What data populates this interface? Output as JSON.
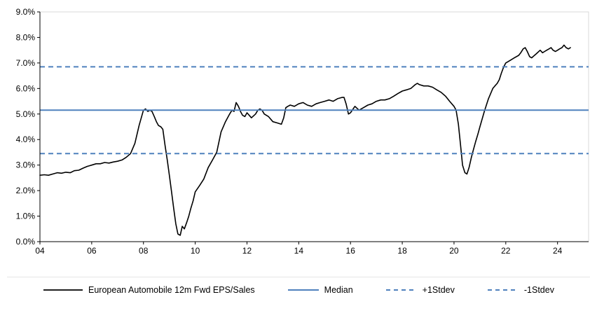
{
  "chart_data": {
    "type": "line",
    "title": "",
    "xlabel": "",
    "ylabel": "",
    "grid": false,
    "legend_position": "bottom",
    "xlim": [
      2004,
      2025.2
    ],
    "ylim": [
      0,
      9
    ],
    "x_tick_values": [
      2004,
      2006,
      2008,
      2010,
      2012,
      2014,
      2016,
      2018,
      2020,
      2022,
      2024
    ],
    "x_tick_labels": [
      "04",
      "06",
      "08",
      "10",
      "12",
      "14",
      "16",
      "18",
      "20",
      "22",
      "24"
    ],
    "y_tick_values": [
      0,
      1,
      2,
      3,
      4,
      5,
      6,
      7,
      8,
      9
    ],
    "y_tick_labels": [
      "0.0%",
      "1.0%",
      "2.0%",
      "3.0%",
      "4.0%",
      "5.0%",
      "6.0%",
      "7.0%",
      "8.0%",
      "9.0%"
    ],
    "colors": {
      "series": "#000000",
      "reference": "#4F81BD",
      "plot_border": "#d9d9d9"
    },
    "series": [
      {
        "name": "European Automobile 12m Fwd EPS/Sales",
        "type": "line",
        "style": "solid",
        "color": "#000000",
        "x": [
          2004.0,
          2004.17,
          2004.33,
          2004.5,
          2004.67,
          2004.83,
          2005.0,
          2005.17,
          2005.33,
          2005.5,
          2005.67,
          2005.83,
          2006.0,
          2006.17,
          2006.33,
          2006.5,
          2006.67,
          2006.83,
          2007.0,
          2007.17,
          2007.33,
          2007.5,
          2007.67,
          2007.83,
          2008.0,
          2008.08,
          2008.17,
          2008.25,
          2008.33,
          2008.42,
          2008.5,
          2008.58,
          2008.67,
          2008.75,
          2008.83,
          2008.92,
          2009.0,
          2009.08,
          2009.17,
          2009.25,
          2009.33,
          2009.42,
          2009.5,
          2009.58,
          2009.67,
          2009.75,
          2009.83,
          2009.92,
          2010.0,
          2010.17,
          2010.33,
          2010.5,
          2010.67,
          2010.83,
          2011.0,
          2011.17,
          2011.33,
          2011.42,
          2011.5,
          2011.58,
          2011.67,
          2011.75,
          2011.83,
          2011.92,
          2012.0,
          2012.17,
          2012.33,
          2012.42,
          2012.5,
          2012.58,
          2012.67,
          2012.83,
          2013.0,
          2013.17,
          2013.33,
          2013.42,
          2013.5,
          2013.58,
          2013.67,
          2013.83,
          2014.0,
          2014.17,
          2014.33,
          2014.5,
          2014.67,
          2014.83,
          2015.0,
          2015.17,
          2015.33,
          2015.5,
          2015.67,
          2015.75,
          2015.83,
          2015.92,
          2016.0,
          2016.17,
          2016.33,
          2016.5,
          2016.67,
          2016.83,
          2017.0,
          2017.17,
          2017.33,
          2017.5,
          2017.67,
          2017.83,
          2018.0,
          2018.17,
          2018.33,
          2018.5,
          2018.58,
          2018.67,
          2018.83,
          2019.0,
          2019.17,
          2019.33,
          2019.5,
          2019.67,
          2019.83,
          2020.0,
          2020.08,
          2020.17,
          2020.25,
          2020.33,
          2020.42,
          2020.5,
          2020.58,
          2020.67,
          2020.75,
          2020.83,
          2020.92,
          2021.0,
          2021.17,
          2021.33,
          2021.5,
          2021.58,
          2021.67,
          2021.75,
          2021.83,
          2021.92,
          2022.0,
          2022.17,
          2022.33,
          2022.5,
          2022.58,
          2022.67,
          2022.75,
          2022.83,
          2022.92,
          2023.0,
          2023.17,
          2023.33,
          2023.42,
          2023.5,
          2023.58,
          2023.67,
          2023.75,
          2023.83,
          2023.92,
          2024.0,
          2024.08,
          2024.17,
          2024.25,
          2024.33,
          2024.42,
          2024.5
        ],
        "y": [
          2.6,
          2.62,
          2.6,
          2.65,
          2.7,
          2.68,
          2.72,
          2.7,
          2.78,
          2.8,
          2.88,
          2.95,
          3.0,
          3.05,
          3.05,
          3.1,
          3.08,
          3.12,
          3.15,
          3.2,
          3.3,
          3.45,
          3.85,
          4.55,
          5.15,
          5.2,
          5.1,
          5.15,
          5.1,
          4.9,
          4.7,
          4.55,
          4.5,
          4.4,
          3.8,
          3.2,
          2.6,
          2.0,
          1.3,
          0.7,
          0.3,
          0.25,
          0.6,
          0.5,
          0.75,
          1.0,
          1.3,
          1.6,
          1.95,
          2.2,
          2.45,
          2.9,
          3.2,
          3.5,
          4.3,
          4.7,
          5.0,
          5.15,
          5.1,
          5.45,
          5.3,
          5.1,
          4.95,
          4.9,
          5.05,
          4.85,
          5.0,
          5.15,
          5.2,
          5.15,
          5.0,
          4.9,
          4.7,
          4.65,
          4.6,
          4.85,
          5.25,
          5.3,
          5.35,
          5.3,
          5.4,
          5.45,
          5.35,
          5.3,
          5.4,
          5.45,
          5.5,
          5.55,
          5.5,
          5.6,
          5.65,
          5.65,
          5.4,
          5.0,
          5.05,
          5.3,
          5.15,
          5.25,
          5.35,
          5.4,
          5.5,
          5.55,
          5.55,
          5.6,
          5.7,
          5.8,
          5.9,
          5.95,
          6.0,
          6.15,
          6.2,
          6.15,
          6.1,
          6.1,
          6.05,
          5.95,
          5.85,
          5.7,
          5.5,
          5.3,
          5.15,
          4.6,
          3.8,
          3.0,
          2.7,
          2.65,
          2.9,
          3.3,
          3.6,
          3.9,
          4.2,
          4.5,
          5.1,
          5.6,
          6.0,
          6.1,
          6.2,
          6.35,
          6.6,
          6.85,
          7.0,
          7.1,
          7.2,
          7.3,
          7.4,
          7.55,
          7.6,
          7.45,
          7.25,
          7.2,
          7.35,
          7.5,
          7.4,
          7.45,
          7.5,
          7.55,
          7.6,
          7.5,
          7.45,
          7.5,
          7.55,
          7.6,
          7.7,
          7.6,
          7.55,
          7.6
        ]
      },
      {
        "name": "Median",
        "type": "hline",
        "style": "solid",
        "color": "#4F81BD",
        "value": 5.15
      },
      {
        "name": "+1Stdev",
        "type": "hline",
        "style": "dashed",
        "color": "#4F81BD",
        "value": 6.85
      },
      {
        "name": "-1Stdev",
        "type": "hline",
        "style": "dashed",
        "color": "#4F81BD",
        "value": 3.45
      }
    ]
  }
}
